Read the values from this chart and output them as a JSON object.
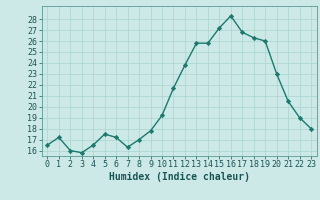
{
  "x": [
    0,
    1,
    2,
    3,
    4,
    5,
    6,
    7,
    8,
    9,
    10,
    11,
    12,
    13,
    14,
    15,
    16,
    17,
    18,
    19,
    20,
    21,
    22,
    23
  ],
  "y": [
    16.5,
    17.2,
    16.0,
    15.8,
    16.5,
    17.5,
    17.2,
    16.3,
    17.0,
    17.8,
    19.2,
    21.7,
    23.8,
    25.8,
    25.8,
    27.2,
    28.3,
    26.8,
    26.3,
    26.0,
    23.0,
    20.5,
    19.0,
    18.0
  ],
  "line_color": "#1a7a6e",
  "marker_color": "#1a7a6e",
  "bg_color": "#cce9e7",
  "grid_color": "#aad4d0",
  "xlabel": "Humidex (Indice chaleur)",
  "ylim": [
    15.5,
    29.2
  ],
  "xlim": [
    -0.5,
    23.5
  ],
  "yticks": [
    16,
    17,
    18,
    19,
    20,
    21,
    22,
    23,
    24,
    25,
    26,
    27,
    28
  ],
  "xticks": [
    0,
    1,
    2,
    3,
    4,
    5,
    6,
    7,
    8,
    9,
    10,
    11,
    12,
    13,
    14,
    15,
    16,
    17,
    18,
    19,
    20,
    21,
    22,
    23
  ],
  "tick_color": "#1a5555",
  "label_fontsize": 6.0,
  "xlabel_fontsize": 7.0
}
